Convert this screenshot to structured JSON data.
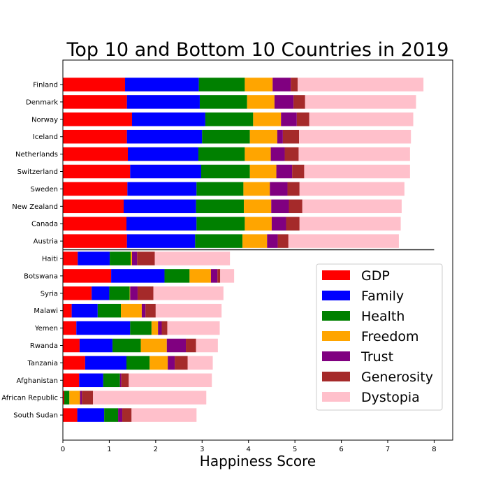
{
  "chart_data": {
    "type": "bar",
    "orientation": "horizontal",
    "stacked": true,
    "title": "Top 10 and Bottom 10 Countries in 2019",
    "xlabel": "Happiness Score",
    "ylabel": "",
    "xlim": [
      0,
      8.4
    ],
    "xticks": [
      0,
      1,
      2,
      3,
      4,
      5,
      6,
      7,
      8
    ],
    "grid": false,
    "legend_position": "lower-right",
    "separator_at_x_max": 8,
    "categories": [
      "Finland",
      "Denmark",
      "Norway",
      "Iceland",
      "Netherlands",
      "Switzerland",
      "Sweden",
      "New Zealand",
      "Canada",
      "Austria",
      "Haiti",
      "Botswana",
      "Syria",
      "Malawi",
      "Yemen",
      "Rwanda",
      "Tanzania",
      "Afghanistan",
      "Central African Republic",
      "South Sudan"
    ],
    "category_tick_labels": [
      "Finland",
      "Denmark",
      "Norway",
      "Iceland",
      "Netherlands",
      "Switzerland",
      "Sweden",
      "New Zealand",
      "Canada",
      "Austria",
      "Haiti",
      "Botswana",
      "Syria",
      "Malawi",
      "Yemen",
      "Rwanda",
      "Tanzania",
      "Afghanistan",
      "African Republic",
      "South Sudan"
    ],
    "series": [
      {
        "name": "GDP",
        "color": "#ff0000",
        "values": [
          1.34,
          1.38,
          1.49,
          1.38,
          1.4,
          1.45,
          1.39,
          1.31,
          1.37,
          1.38,
          0.32,
          1.04,
          0.62,
          0.19,
          0.29,
          0.36,
          0.48,
          0.35,
          0.03,
          0.31
        ]
      },
      {
        "name": "Family",
        "color": "#0000ff",
        "values": [
          1.59,
          1.57,
          1.58,
          1.62,
          1.52,
          1.53,
          1.49,
          1.56,
          1.51,
          1.47,
          0.69,
          1.15,
          0.38,
          0.56,
          1.16,
          0.71,
          0.89,
          0.52,
          0.0,
          0.58
        ]
      },
      {
        "name": "Health",
        "color": "#008000",
        "values": [
          0.99,
          1.02,
          1.03,
          1.03,
          1.0,
          1.05,
          1.01,
          1.03,
          1.04,
          1.02,
          0.45,
          0.54,
          0.44,
          0.5,
          0.46,
          0.61,
          0.5,
          0.36,
          0.11,
          0.3
        ]
      },
      {
        "name": "Freedom",
        "color": "#ffa500",
        "values": [
          0.6,
          0.59,
          0.6,
          0.59,
          0.56,
          0.57,
          0.57,
          0.59,
          0.58,
          0.53,
          0.03,
          0.46,
          0.01,
          0.45,
          0.14,
          0.56,
          0.39,
          0.0,
          0.23,
          0.0
        ]
      },
      {
        "name": "Trust",
        "color": "#800080",
        "values": [
          0.39,
          0.41,
          0.34,
          0.12,
          0.3,
          0.34,
          0.38,
          0.38,
          0.31,
          0.23,
          0.11,
          0.14,
          0.16,
          0.08,
          0.08,
          0.41,
          0.15,
          0.03,
          0.04,
          0.09
        ]
      },
      {
        "name": "Generosity",
        "color": "#a52a2a",
        "values": [
          0.15,
          0.25,
          0.27,
          0.35,
          0.3,
          0.26,
          0.26,
          0.29,
          0.29,
          0.23,
          0.38,
          0.06,
          0.34,
          0.22,
          0.12,
          0.22,
          0.28,
          0.16,
          0.24,
          0.2
        ]
      },
      {
        "name": "Dystopia",
        "color": "#ffc0cb",
        "values": [
          2.71,
          2.39,
          2.24,
          2.41,
          2.4,
          2.28,
          2.26,
          2.14,
          2.18,
          2.38,
          1.62,
          0.3,
          1.51,
          1.42,
          1.13,
          0.47,
          0.54,
          1.79,
          2.44,
          1.4
        ]
      }
    ]
  }
}
